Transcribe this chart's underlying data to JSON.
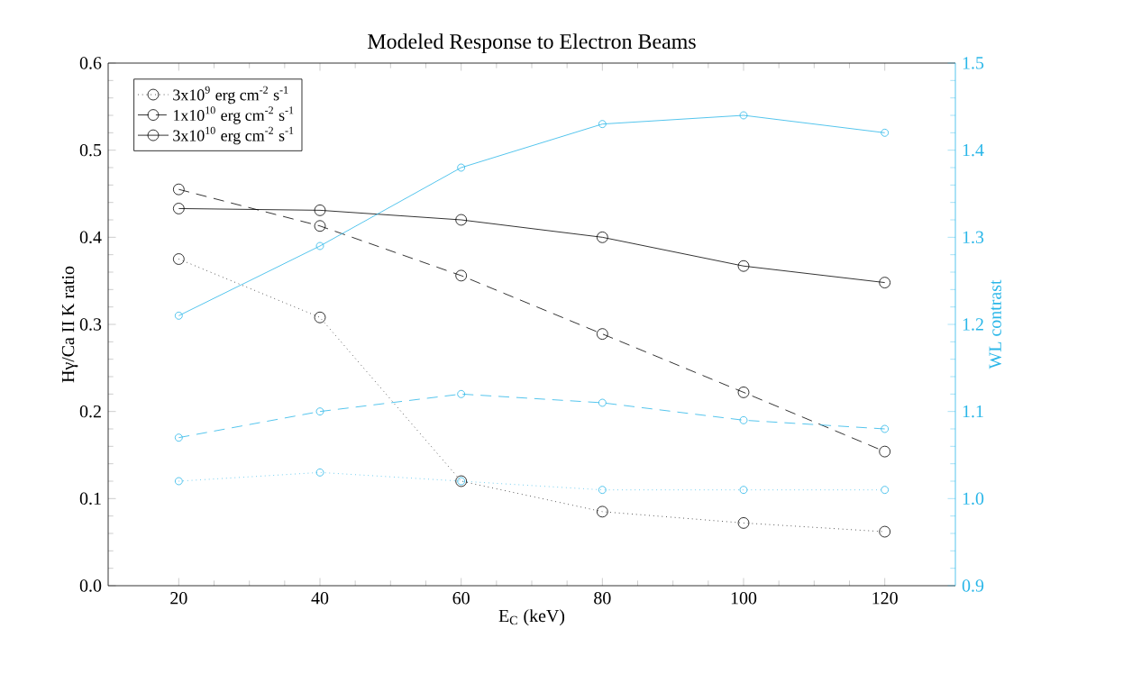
{
  "chart_data": {
    "type": "line",
    "title": "Modeled Response to Electron Beams",
    "xlabel": "E$_{C}$ (keV)",
    "ylabel": "Hγ/Ca II K ratio",
    "y2label": "WL contrast",
    "x": [
      20,
      40,
      60,
      80,
      100,
      120
    ],
    "xlim": [
      10,
      130
    ],
    "xticks": [
      20,
      40,
      60,
      80,
      100,
      120
    ],
    "ylim": [
      0,
      0.6
    ],
    "yticks": [
      {
        "value": 0,
        "label": "0.0"
      },
      0.1,
      0.2,
      0.3,
      0.4,
      0.5,
      0.6
    ],
    "y2lim": [
      0.9,
      1.5
    ],
    "y2ticks": [
      0.9,
      {
        "value": 1,
        "label": "1.0"
      },
      1.1,
      1.2,
      1.3,
      1.4,
      1.5
    ],
    "marker": "circle",
    "legend": "top left",
    "grid": false,
    "series": [
      {
        "name": "3x10$^{9}$ erg cm$^{-2}$ s$^{-1}$",
        "color": "#000000",
        "line_style": "dotted",
        "values": [
          0.375,
          0.308,
          0.12,
          0.085,
          0.072,
          0.062
        ]
      },
      {
        "name": "1x10$^{10}$ erg cm$^{-2}$ s$^{-1}$",
        "color": "#000000",
        "line_style": "dashed",
        "values": [
          0.455,
          0.413,
          0.356,
          0.289,
          0.222,
          0.154
        ]
      },
      {
        "name": "3x10$^{10}$ erg cm$^{-2}$ s$^{-1}$",
        "color": "#000000",
        "line_style": "solid",
        "values": [
          0.433,
          0.431,
          0.42,
          0.4,
          0.367,
          0.348
        ]
      },
      {
        "color": "#29b6e8",
        "line_style": "dotted",
        "axis": "y2",
        "values": [
          1.02,
          1.03,
          1.02,
          1.01,
          1.01,
          1.01
        ]
      },
      {
        "color": "#29b6e8",
        "line_style": "dashed",
        "axis": "y2",
        "values": [
          1.07,
          1.1,
          1.12,
          1.11,
          1.09,
          1.08
        ]
      },
      {
        "color": "#29b6e8",
        "line_style": "solid",
        "axis": "y2",
        "values": [
          1.21,
          1.29,
          1.38,
          1.43,
          1.44,
          1.42
        ]
      }
    ]
  }
}
